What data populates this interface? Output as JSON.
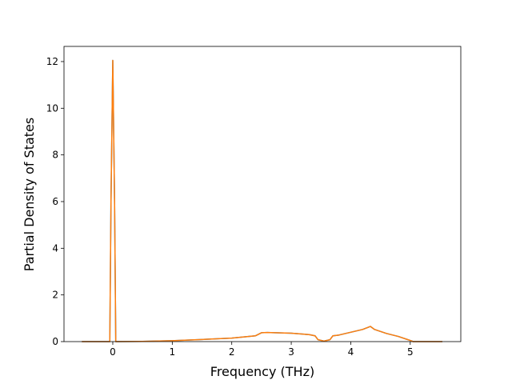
{
  "chart_data": {
    "type": "line",
    "xlabel": "Frequency (THz)",
    "ylabel": "Partial Density of States",
    "x": [
      -0.52,
      -0.05,
      -0.03,
      0,
      0.03,
      0.05,
      0.5,
      1,
      1.5,
      2,
      2.4,
      2.5,
      2.6,
      3,
      3.3,
      3.4,
      3.45,
      3.55,
      3.65,
      3.7,
      3.8,
      4,
      4.2,
      4.33,
      4.4,
      4.6,
      4.8,
      5,
      5.05,
      5.54
    ],
    "series": [
      {
        "color": "#1f77b4",
        "values": [
          0,
          0,
          6,
          12.05,
          6,
          0,
          0.01,
          0.04,
          0.09,
          0.15,
          0.25,
          0.38,
          0.39,
          0.36,
          0.3,
          0.25,
          0.08,
          0.02,
          0.08,
          0.25,
          0.28,
          0.4,
          0.52,
          0.65,
          0.52,
          0.35,
          0.22,
          0.05,
          0,
          0
        ]
      },
      {
        "color": "#ff7f0e",
        "values": [
          0,
          0,
          6,
          12.05,
          6,
          0,
          0.01,
          0.04,
          0.09,
          0.15,
          0.25,
          0.38,
          0.39,
          0.36,
          0.3,
          0.25,
          0.08,
          0.02,
          0.08,
          0.25,
          0.28,
          0.4,
          0.52,
          0.65,
          0.52,
          0.35,
          0.22,
          0.05,
          0,
          0
        ]
      }
    ],
    "xlim": [
      -0.82,
      5.85
    ],
    "ylim": [
      0,
      12.65
    ],
    "xticks": [
      0,
      1,
      2,
      3,
      4,
      5
    ],
    "yticks": [
      0,
      2,
      4,
      6,
      8,
      10,
      12
    ]
  }
}
